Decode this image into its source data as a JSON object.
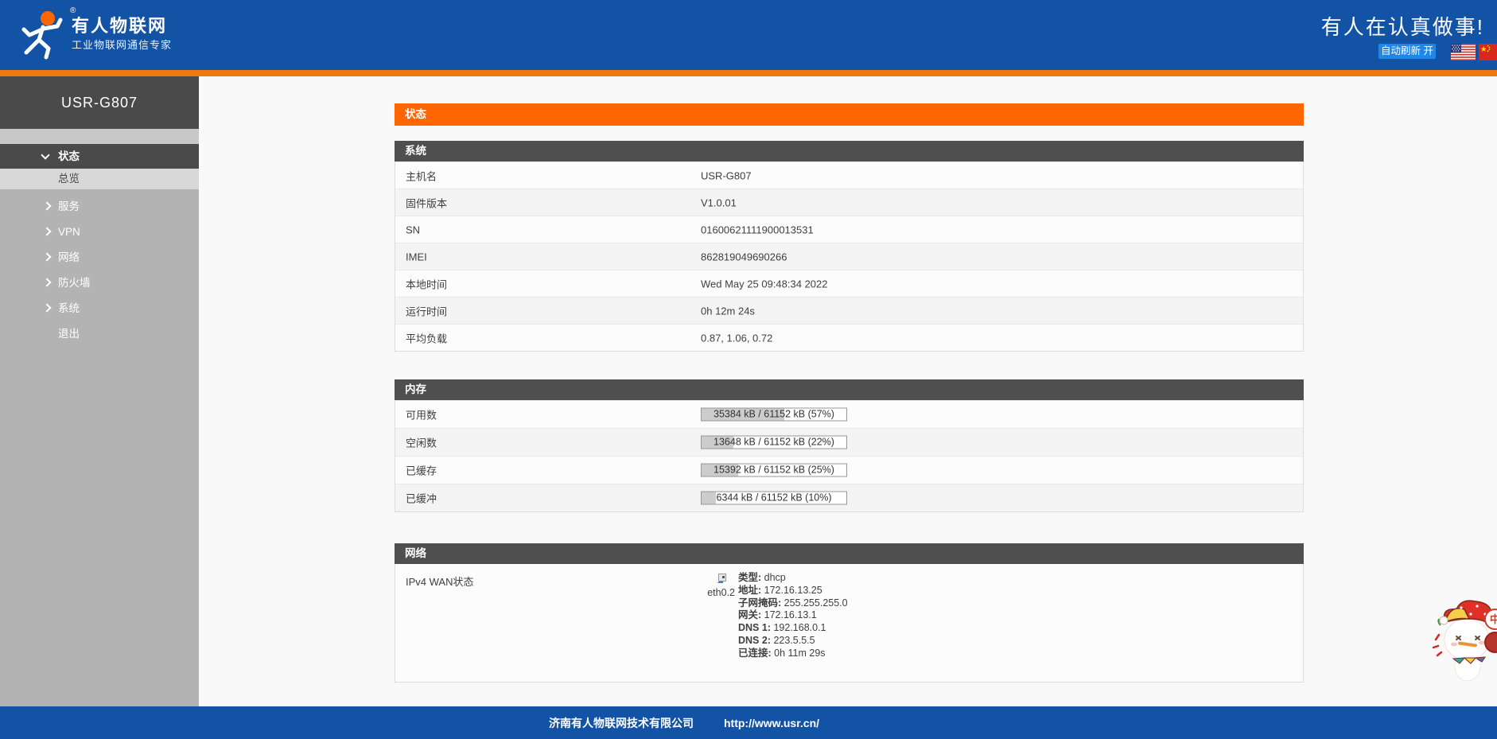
{
  "header": {
    "brand_title": "有人物联网",
    "brand_subtitle": "工业物联网通信专家",
    "registered_mark": "®",
    "slogan": "有人在认真做事!",
    "auto_refresh_label": "自动刷新 开"
  },
  "sidebar": {
    "device_name": "USR-G807",
    "items": [
      {
        "label": "状态",
        "chevron": "down",
        "state": "active"
      },
      {
        "label": "总览",
        "chevron": "none",
        "state": "selected-sub"
      },
      {
        "label": "服务",
        "chevron": "right",
        "state": "normal"
      },
      {
        "label": "VPN",
        "chevron": "right",
        "state": "normal"
      },
      {
        "label": "网络",
        "chevron": "right",
        "state": "normal"
      },
      {
        "label": "防火墙",
        "chevron": "right",
        "state": "normal"
      },
      {
        "label": "系统",
        "chevron": "right",
        "state": "normal"
      },
      {
        "label": "退出",
        "chevron": "none",
        "state": "normal"
      }
    ]
  },
  "main": {
    "page_title": "状态",
    "system": {
      "title": "系统",
      "rows": [
        {
          "label": "主机名",
          "value": "USR-G807"
        },
        {
          "label": "固件版本",
          "value": "V1.0.01"
        },
        {
          "label": "SN",
          "value": "01600621111900013531"
        },
        {
          "label": "IMEI",
          "value": "862819049690266"
        },
        {
          "label": "本地时间",
          "value": "Wed May 25 09:48:34 2022"
        },
        {
          "label": "运行时间",
          "value": "0h 12m 24s"
        },
        {
          "label": "平均负载",
          "value": "0.87, 1.06, 0.72"
        }
      ]
    },
    "memory": {
      "title": "内存",
      "rows": [
        {
          "label": "可用数",
          "text": "35384 kB / 61152 kB (57%)",
          "percent": 57
        },
        {
          "label": "空闲数",
          "text": "13648 kB / 61152 kB (22%)",
          "percent": 22
        },
        {
          "label": "已缓存",
          "text": "15392 kB / 61152 kB (25%)",
          "percent": 25
        },
        {
          "label": "已缓冲",
          "text": "6344 kB / 61152 kB (10%)",
          "percent": 10
        }
      ]
    },
    "network": {
      "title": "网络",
      "row_label": "IPv4 WAN状态",
      "interface_name": "eth0.2",
      "details": [
        {
          "label": "类型:",
          "value": "dhcp"
        },
        {
          "label": "地址:",
          "value": "172.16.13.25"
        },
        {
          "label": "子网掩码:",
          "value": "255.255.255.0"
        },
        {
          "label": "网关:",
          "value": "172.16.13.1"
        },
        {
          "label": "DNS 1:",
          "value": "192.168.0.1"
        },
        {
          "label": "DNS 2:",
          "value": "223.5.5.5"
        },
        {
          "label": "已连接:",
          "value": "0h 11m 29s"
        }
      ]
    }
  },
  "footer": {
    "company": "济南有人物联网技术有限公司",
    "url": "http://www.usr.cn/"
  },
  "widgets": {
    "zh_badge": "中"
  },
  "icons": {
    "logo": "usr-running-person",
    "chevron_down": "∨",
    "chevron_right": "›",
    "flag_us": "us-flag",
    "flag_cn": "cn-flag",
    "network_interface": "ethernet-port",
    "mascot": "jester-hat-sticker"
  },
  "colors": {
    "header_blue": "#1353a5",
    "button_blue": "#1f87e8",
    "accent_orange": "#ff6600",
    "divider_orange": "#ee7910",
    "sidebar_gray": "#b3b3b3",
    "dark_gray": "#4a4a4a",
    "table_header_gray": "#4f4f4f",
    "memory_bar_fill": "#cccccc"
  }
}
